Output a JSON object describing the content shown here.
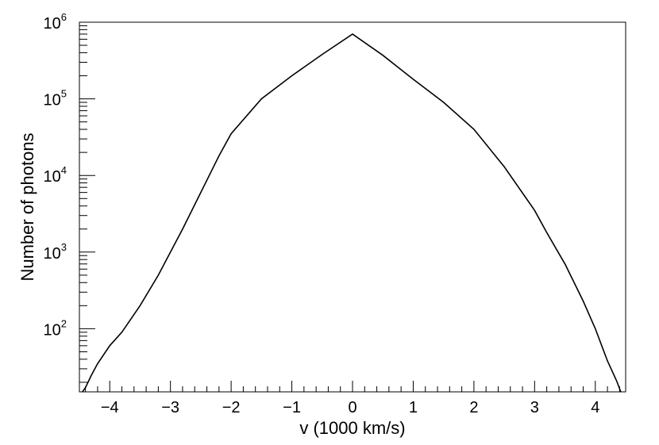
{
  "chart_data": {
    "type": "line",
    "title": "",
    "xlabel": "v (1000 km/s)",
    "ylabel": "Number of photons",
    "xlim": [
      -4.5,
      4.5
    ],
    "ylim": [
      15,
      1000000
    ],
    "yscale": "log",
    "grid": false,
    "legend": "none",
    "line_color": "#000000",
    "x_ticks": [
      {
        "value": -4,
        "label": "−4"
      },
      {
        "value": -3,
        "label": "−3"
      },
      {
        "value": -2,
        "label": "−2"
      },
      {
        "value": -1,
        "label": "−1"
      },
      {
        "value": 0,
        "label": "0"
      },
      {
        "value": 1,
        "label": "1"
      },
      {
        "value": 2,
        "label": "2"
      },
      {
        "value": 3,
        "label": "3"
      },
      {
        "value": 4,
        "label": "4"
      }
    ],
    "y_ticks": [
      {
        "value": 100,
        "base": "10",
        "exp": "2"
      },
      {
        "value": 1000,
        "base": "10",
        "exp": "3"
      },
      {
        "value": 10000,
        "base": "10",
        "exp": "4"
      },
      {
        "value": 100000,
        "base": "10",
        "exp": "5"
      },
      {
        "value": 1000000,
        "base": "10",
        "exp": "6"
      }
    ],
    "series": [
      {
        "x": [
          -4.45,
          -4.4,
          -4.3,
          -4.2,
          -4.0,
          -3.8,
          -3.5,
          -3.2,
          -3.0,
          -2.8,
          -2.5,
          -2.2,
          -2.0,
          -1.5,
          -1.0,
          -0.5,
          0.0,
          0.5,
          1.0,
          1.5,
          2.0,
          2.5,
          3.0,
          3.2,
          3.5,
          3.8,
          4.0,
          4.2,
          4.35,
          4.42
        ],
        "y": [
          15,
          17,
          25,
          35,
          60,
          90,
          200,
          500,
          1000,
          2000,
          6000,
          18000,
          35000,
          100000,
          200000,
          380000,
          700000,
          370000,
          180000,
          90000,
          40000,
          13000,
          3500,
          1800,
          700,
          230,
          100,
          38,
          21,
          15
        ]
      }
    ]
  }
}
